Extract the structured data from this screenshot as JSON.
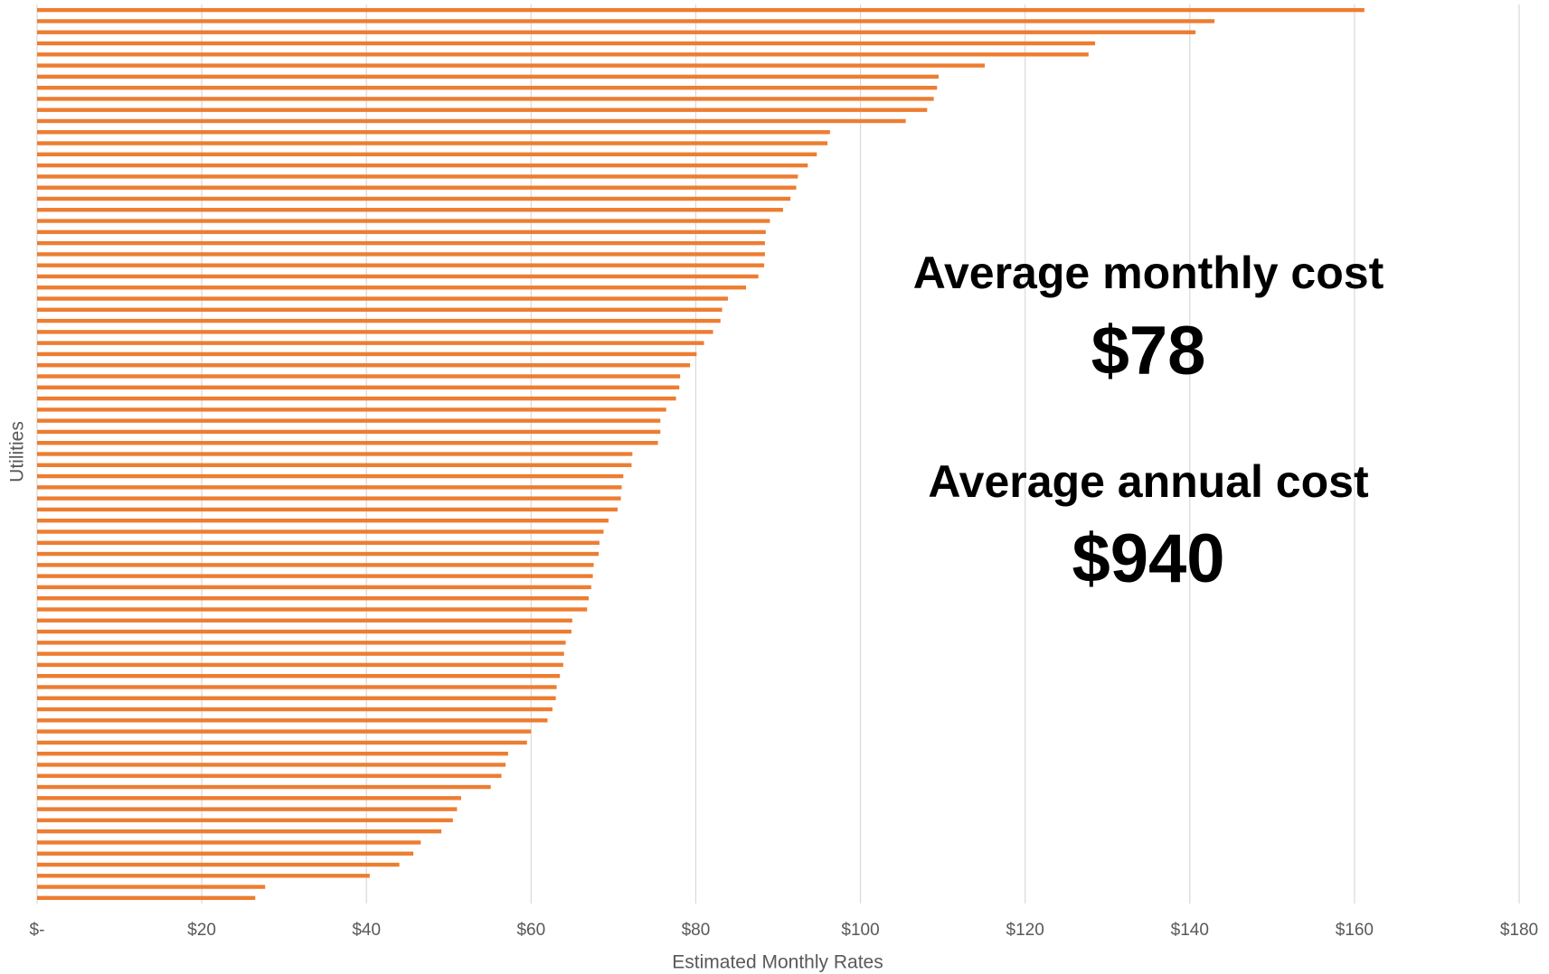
{
  "chart_data": {
    "type": "barh",
    "xlabel": "Estimated Monthly Rates",
    "ylabel": "Utilities",
    "color": "#ed7d31",
    "grid": true,
    "values": [
      161.2,
      143,
      140.7,
      128.5,
      127.7,
      115.1,
      109.5,
      109.3,
      108.9,
      108.1,
      105.5,
      96.3,
      96.0,
      94.7,
      93.6,
      92.4,
      92.2,
      91.5,
      90.6,
      89.0,
      88.5,
      88.4,
      88.4,
      88.3,
      87.6,
      86.1,
      83.9,
      83.2,
      83.0,
      82.1,
      81.0,
      80.1,
      79.3,
      78.1,
      78.0,
      77.6,
      76.4,
      75.7,
      75.7,
      75.4,
      72.3,
      72.2,
      71.2,
      71.0,
      70.9,
      70.5,
      69.4,
      68.8,
      68.3,
      68.2,
      67.6,
      67.5,
      67.3,
      67.0,
      66.8,
      65.0,
      64.9,
      64.2,
      64.0,
      63.9,
      63.5,
      63.1,
      63.0,
      62.6,
      62.0,
      60.0,
      59.5,
      57.2,
      56.9,
      56.4,
      55.1,
      51.5,
      51.0,
      50.5,
      49.1,
      46.6,
      45.7,
      44.0,
      40.4,
      27.7,
      26.5
    ],
    "xlim": [
      0,
      180
    ],
    "xticks": [
      {
        "value": 0,
        "label": "$-"
      },
      {
        "value": 20,
        "label": "$20"
      },
      {
        "value": 40,
        "label": "$40"
      },
      {
        "value": 60,
        "label": "$60"
      },
      {
        "value": 80,
        "label": "$80"
      },
      {
        "value": 100,
        "label": "$100"
      },
      {
        "value": 120,
        "label": "$120"
      },
      {
        "value": 140,
        "label": "$140"
      },
      {
        "value": 160,
        "label": "$160"
      },
      {
        "value": 180,
        "label": "$180"
      }
    ],
    "annotations": [
      "Average monthly cost",
      "$78",
      "Average annual cost",
      "$940"
    ]
  }
}
